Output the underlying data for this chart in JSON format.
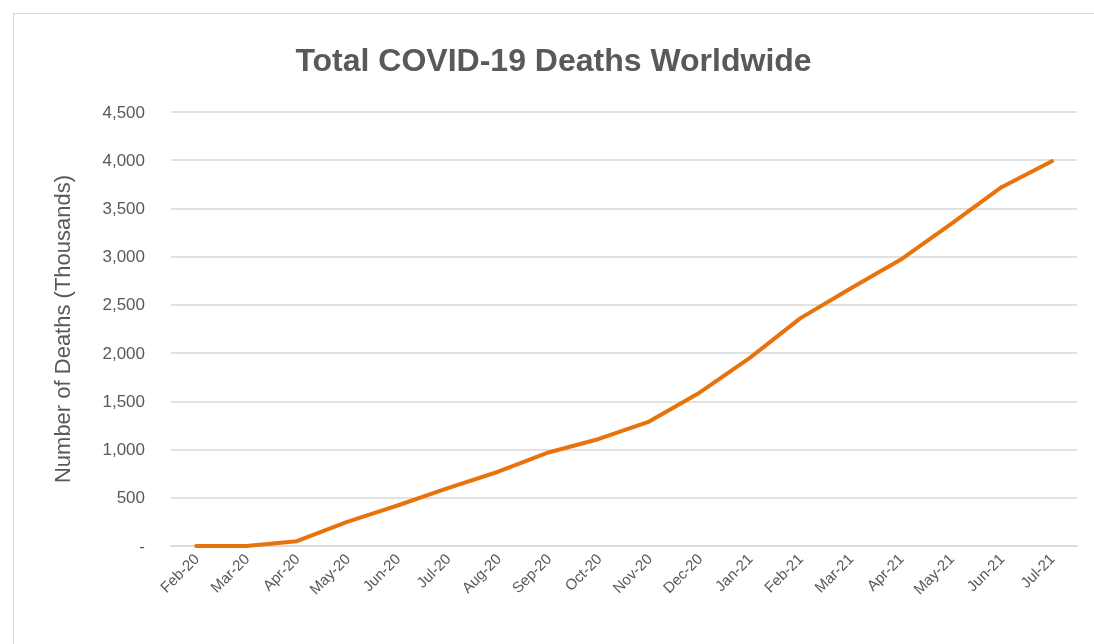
{
  "chart_data": {
    "type": "line",
    "title": "Total COVID-19 Deaths Worldwide",
    "ylabel": "Number of Deaths (Thousands)",
    "categories": [
      "Feb-20",
      "Mar-20",
      "Apr-20",
      "May-20",
      "Jun-20",
      "Jul-20",
      "Aug-20",
      "Sep-20",
      "Oct-20",
      "Nov-20",
      "Dec-20",
      "Jan-21",
      "Feb-21",
      "Mar-21",
      "Apr-21",
      "May-21",
      "Jun-21",
      "Jul-21"
    ],
    "series": [
      {
        "color": "#e8720c",
        "values": [
          0,
          0,
          50,
          250,
          420,
          600,
          770,
          970,
          1110,
          1290,
          1590,
          1950,
          2360,
          2670,
          2970,
          3340,
          3720,
          3990
        ]
      }
    ],
    "ylim": [
      0,
      4500
    ],
    "yticks": [
      {
        "value": 0,
        "label": "-"
      },
      500,
      {
        "value": 1000,
        "label": "1,000"
      },
      {
        "value": 1500,
        "label": "1,500"
      },
      {
        "value": 2000,
        "label": "2,000"
      },
      {
        "value": 2500,
        "label": "2,500"
      },
      {
        "value": 3000,
        "label": "3,000"
      },
      {
        "value": 3500,
        "label": "3,500"
      },
      {
        "value": 4000,
        "label": "4,000"
      },
      {
        "value": 4500,
        "label": "4,500"
      }
    ],
    "grid": "y",
    "marker": "none",
    "line_style": "solid"
  }
}
